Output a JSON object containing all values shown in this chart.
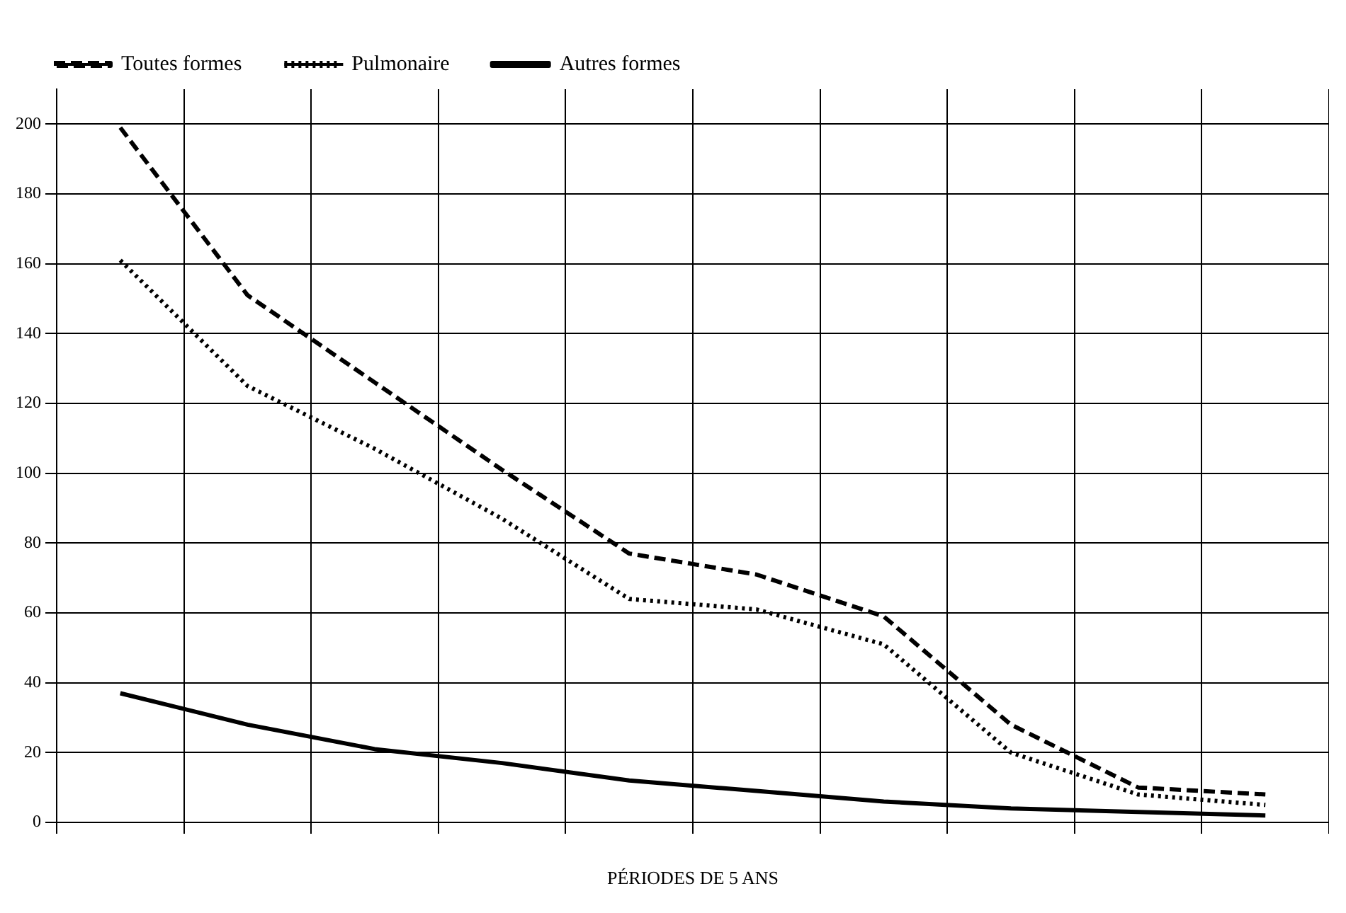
{
  "chart_data": {
    "type": "line",
    "xlabel": "PÉRIODES DE 5 ANS",
    "categories": [
      null,
      null,
      null,
      null,
      null,
      null,
      null,
      null,
      null,
      null
    ],
    "series": [
      {
        "name": "Toutes formes",
        "color": "#000000",
        "line_style": "dashed",
        "values": [
          199,
          151,
          126,
          101,
          77,
          71,
          59,
          28,
          10,
          8
        ]
      },
      {
        "name": "Pulmonaire",
        "color": "#000000",
        "line_style": "dotted",
        "values": [
          161,
          125,
          107,
          87,
          64,
          61,
          51,
          20,
          8,
          5
        ]
      },
      {
        "name": "Autres formes",
        "color": "#000000",
        "line_style": "solid",
        "values": [
          37,
          28,
          21,
          17,
          12,
          9,
          6,
          4,
          3,
          2
        ]
      }
    ],
    "ylim": [
      0,
      210
    ],
    "yticks": [
      0,
      20,
      40,
      60,
      80,
      100,
      120,
      140,
      160,
      180,
      200
    ],
    "grid": true,
    "legend": "top",
    "marker": "none"
  }
}
